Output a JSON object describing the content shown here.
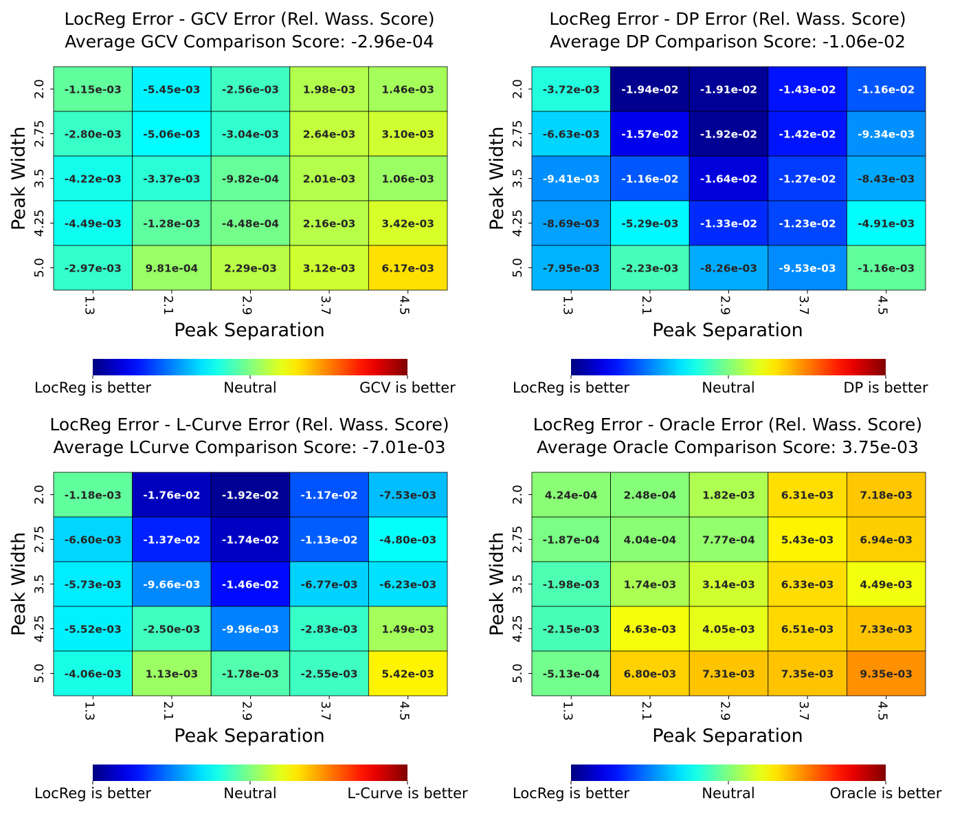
{
  "chart_data": [
    {
      "type": "heatmap",
      "title": "LocReg Error - GCV Error (Rel. Wass. Score)",
      "subtitle": "Average GCV Comparison Score: -2.96e-04",
      "xlabel": "Peak Separation",
      "ylabel": "Peak Width",
      "x_categories": [
        "1.3",
        "2.1",
        "2.9",
        "3.7",
        "4.5"
      ],
      "y_categories": [
        "2.0",
        "2.75",
        "3.5",
        "4.25",
        "5.0"
      ],
      "values": [
        [
          -0.00115,
          -0.00545,
          -0.00256,
          0.00198,
          0.00146
        ],
        [
          -0.0028,
          -0.00506,
          -0.00304,
          0.00264,
          0.0031
        ],
        [
          -0.00422,
          -0.00337,
          -0.000982,
          0.00201,
          0.00106
        ],
        [
          -0.00449,
          -0.00128,
          -0.000448,
          0.00216,
          0.00342
        ],
        [
          -0.00297,
          0.000981,
          0.00229,
          0.00312,
          0.00617
        ]
      ],
      "labels": [
        [
          "-1.15e-03",
          "-5.45e-03",
          "-2.56e-03",
          "1.98e-03",
          "1.46e-03"
        ],
        [
          "-2.80e-03",
          "-5.06e-03",
          "-3.04e-03",
          "2.64e-03",
          "3.10e-03"
        ],
        [
          "-4.22e-03",
          "-3.37e-03",
          "-9.82e-04",
          "2.01e-03",
          "1.06e-03"
        ],
        [
          "-4.49e-03",
          "-1.28e-03",
          "-4.48e-04",
          "2.16e-03",
          "3.42e-03"
        ],
        [
          "-2.97e-03",
          "9.81e-04",
          "2.29e-03",
          "3.12e-03",
          "6.17e-03"
        ]
      ],
      "colorbar": {
        "colormap": "jet",
        "range": [
          -0.02,
          0.02
        ],
        "left_label": "LocReg is better",
        "center_label": "Neutral",
        "right_label": "GCV is better"
      }
    },
    {
      "type": "heatmap",
      "title": "LocReg Error - DP Error (Rel. Wass. Score)",
      "subtitle": "Average DP Comparison Score: -1.06e-02",
      "xlabel": "Peak Separation",
      "ylabel": "Peak Width",
      "x_categories": [
        "1.3",
        "2.1",
        "2.9",
        "3.7",
        "4.5"
      ],
      "y_categories": [
        "2.0",
        "2.75",
        "3.5",
        "4.25",
        "5.0"
      ],
      "values": [
        [
          -0.00372,
          -0.0194,
          -0.0191,
          -0.0143,
          -0.0116
        ],
        [
          -0.00663,
          -0.0157,
          -0.0192,
          -0.0142,
          -0.00934
        ],
        [
          -0.00941,
          -0.0116,
          -0.0164,
          -0.0127,
          -0.00843
        ],
        [
          -0.00869,
          -0.00529,
          -0.0133,
          -0.0123,
          -0.00491
        ],
        [
          -0.00795,
          -0.00223,
          -0.00826,
          -0.00953,
          -0.00116
        ]
      ],
      "labels": [
        [
          "-3.72e-03",
          "-1.94e-02",
          "-1.91e-02",
          "-1.43e-02",
          "-1.16e-02"
        ],
        [
          "-6.63e-03",
          "-1.57e-02",
          "-1.92e-02",
          "-1.42e-02",
          "-9.34e-03"
        ],
        [
          "-9.41e-03",
          "-1.16e-02",
          "-1.64e-02",
          "-1.27e-02",
          "-8.43e-03"
        ],
        [
          "-8.69e-03",
          "-5.29e-03",
          "-1.33e-02",
          "-1.23e-02",
          "-4.91e-03"
        ],
        [
          "-7.95e-03",
          "-2.23e-03",
          "-8.26e-03",
          "-9.53e-03",
          "-1.16e-03"
        ]
      ],
      "colorbar": {
        "colormap": "jet",
        "range": [
          -0.02,
          0.02
        ],
        "left_label": "LocReg is better",
        "center_label": "Neutral",
        "right_label": "DP is better"
      }
    },
    {
      "type": "heatmap",
      "title": "LocReg Error - L-Curve Error (Rel. Wass. Score)",
      "subtitle": "Average LCurve Comparison Score: -7.01e-03",
      "xlabel": "Peak Separation",
      "ylabel": "Peak Width",
      "x_categories": [
        "1.3",
        "2.1",
        "2.9",
        "3.7",
        "4.5"
      ],
      "y_categories": [
        "2.0",
        "2.75",
        "3.5",
        "4.25",
        "5.0"
      ],
      "values": [
        [
          -0.00118,
          -0.0176,
          -0.0192,
          -0.0117,
          -0.00753
        ],
        [
          -0.0066,
          -0.0137,
          -0.0174,
          -0.0113,
          -0.0048
        ],
        [
          -0.00573,
          -0.00966,
          -0.0146,
          -0.00677,
          -0.00623
        ],
        [
          -0.00552,
          -0.0025,
          -0.00996,
          -0.00283,
          0.00149
        ],
        [
          -0.00406,
          0.00113,
          -0.00178,
          -0.00255,
          0.00542
        ]
      ],
      "labels": [
        [
          "-1.18e-03",
          "-1.76e-02",
          "-1.92e-02",
          "-1.17e-02",
          "-7.53e-03"
        ],
        [
          "-6.60e-03",
          "-1.37e-02",
          "-1.74e-02",
          "-1.13e-02",
          "-4.80e-03"
        ],
        [
          "-5.73e-03",
          "-9.66e-03",
          "-1.46e-02",
          "-6.77e-03",
          "-6.23e-03"
        ],
        [
          "-5.52e-03",
          "-2.50e-03",
          "-9.96e-03",
          "-2.83e-03",
          "1.49e-03"
        ],
        [
          "-4.06e-03",
          "1.13e-03",
          "-1.78e-03",
          "-2.55e-03",
          "5.42e-03"
        ]
      ],
      "colorbar": {
        "colormap": "jet",
        "range": [
          -0.02,
          0.02
        ],
        "left_label": "LocReg is better",
        "center_label": "Neutral",
        "right_label": "L-Curve is better"
      }
    },
    {
      "type": "heatmap",
      "title": "LocReg Error - Oracle Error (Rel. Wass. Score)",
      "subtitle": "Average Oracle Comparison Score: 3.75e-03",
      "xlabel": "Peak Separation",
      "ylabel": "Peak Width",
      "x_categories": [
        "1.3",
        "2.1",
        "2.9",
        "3.7",
        "4.5"
      ],
      "y_categories": [
        "2.0",
        "2.75",
        "3.5",
        "4.25",
        "5.0"
      ],
      "values": [
        [
          0.000424,
          0.000248,
          0.00182,
          0.00631,
          0.00718
        ],
        [
          -0.000187,
          0.000404,
          0.000777,
          0.00543,
          0.00694
        ],
        [
          -0.00198,
          0.00174,
          0.00314,
          0.00633,
          0.00449
        ],
        [
          -0.00215,
          0.00463,
          0.00405,
          0.00651,
          0.00733
        ],
        [
          -0.000513,
          0.0068,
          0.00731,
          0.00735,
          0.00935
        ]
      ],
      "labels": [
        [
          "4.24e-04",
          "2.48e-04",
          "1.82e-03",
          "6.31e-03",
          "7.18e-03"
        ],
        [
          "-1.87e-04",
          "4.04e-04",
          "7.77e-04",
          "5.43e-03",
          "6.94e-03"
        ],
        [
          "-1.98e-03",
          "1.74e-03",
          "3.14e-03",
          "6.33e-03",
          "4.49e-03"
        ],
        [
          "-2.15e-03",
          "4.63e-03",
          "4.05e-03",
          "6.51e-03",
          "7.33e-03"
        ],
        [
          "-5.13e-04",
          "6.80e-03",
          "7.31e-03",
          "7.35e-03",
          "9.35e-03"
        ]
      ],
      "colorbar": {
        "colormap": "jet",
        "range": [
          -0.02,
          0.02
        ],
        "left_label": "LocReg is better",
        "center_label": "Neutral",
        "right_label": "Oracle is better"
      }
    }
  ]
}
